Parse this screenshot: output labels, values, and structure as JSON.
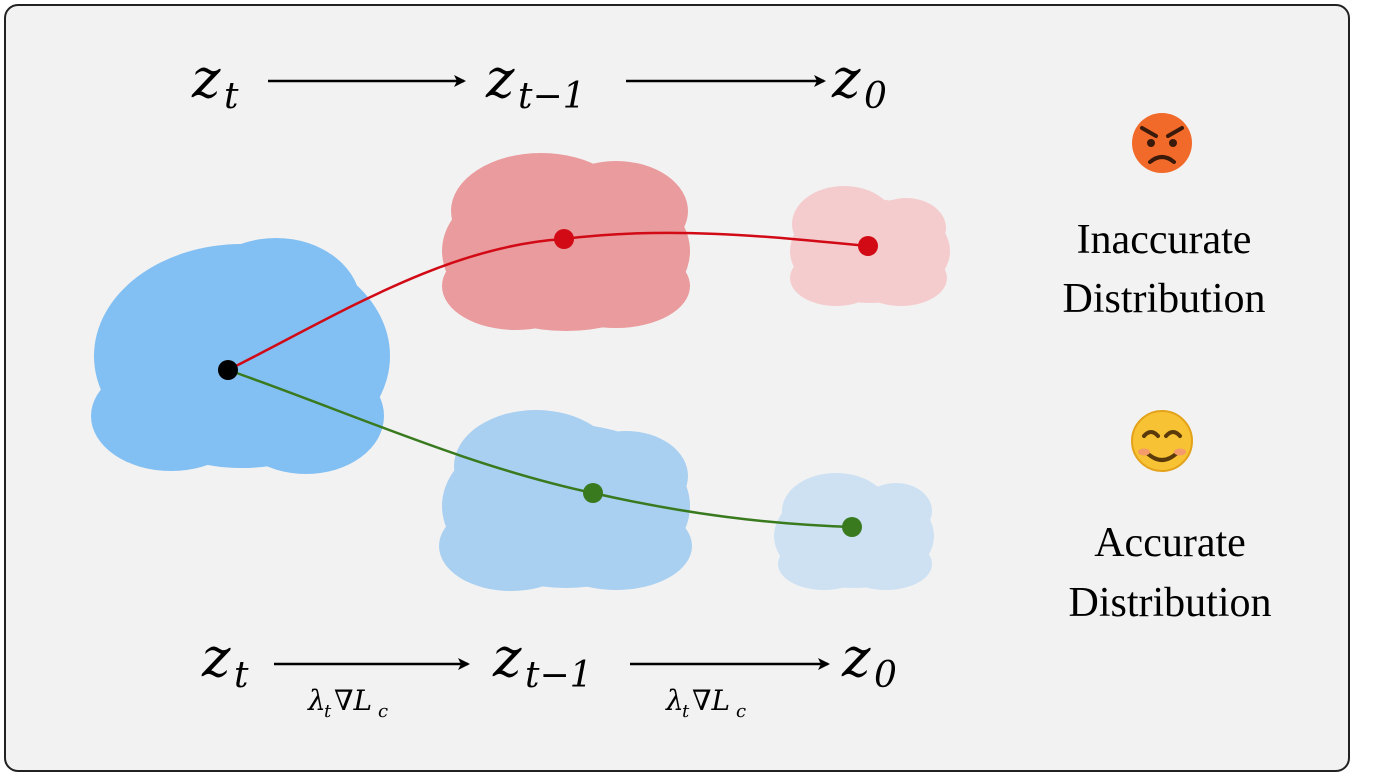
{
  "top_sequence": {
    "zt": "z",
    "zt_sub": "t",
    "zt1": "z",
    "zt1_sub": "t−1",
    "z0": "z",
    "z0_sub": "0"
  },
  "bottom_sequence": {
    "zt": "z",
    "zt_sub": "t",
    "zt1": "z",
    "zt1_sub": "t−1",
    "z0": "z",
    "z0_sub": "0",
    "arrow1_label": {
      "lambda": "λ",
      "lambda_sub": "t",
      "nabla_L": "∇L",
      "L_sub": "c"
    },
    "arrow2_label": {
      "lambda": "λ",
      "lambda_sub": "t",
      "nabla_L": "∇L",
      "L_sub": "c"
    }
  },
  "legend": {
    "inaccurate": {
      "emoji": "😡",
      "line1": "Inaccurate",
      "line2": "Distribution"
    },
    "accurate": {
      "emoji": "😊",
      "line1": "Accurate",
      "line2": "Distribution"
    }
  },
  "colors": {
    "background": "#f2f2f2",
    "start_blob": "#82bff3",
    "red_blob_mid": "#ea9b9d",
    "red_blob_end": "#f5cccd",
    "blue_blob_mid": "#a9cff1",
    "blue_blob_end": "#cde1f3",
    "red_path": "#d10a16",
    "green_path": "#3a7a1e",
    "start_point": "#000000"
  }
}
